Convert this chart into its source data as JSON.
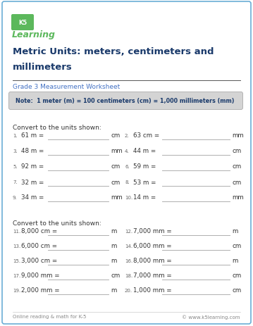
{
  "title_line1": "Metric Units: meters, centimeters and",
  "title_line2": "millimeters",
  "subtitle": "Grade 3 Measurement Worksheet",
  "note": "Note:  1 meter (m) = 100 centimeters (cm) = 1,000 millimeters (mm)",
  "section1_header": "Convert to the units shown:",
  "section2_header": "Convert to the units shown:",
  "problems_section1": [
    {
      "num": "1.",
      "left": "61 m =",
      "unit_left": "cm",
      "right_num": "2.",
      "right": "63 cm =",
      "unit_right": "mm"
    },
    {
      "num": "3.",
      "left": "48 m =",
      "unit_left": "mm",
      "right_num": "4.",
      "right": "44 m =",
      "unit_right": "cm"
    },
    {
      "num": "5.",
      "left": "92 m =",
      "unit_left": "cm",
      "right_num": "6.",
      "right": "59 m =",
      "unit_right": "cm"
    },
    {
      "num": "7.",
      "left": "32 m =",
      "unit_left": "cm",
      "right_num": "8.",
      "right": "53 m =",
      "unit_right": "cm"
    },
    {
      "num": "9.",
      "left": "34 m =",
      "unit_left": "mm",
      "right_num": "10.",
      "right": "14 m =",
      "unit_right": "mm"
    }
  ],
  "problems_section2": [
    {
      "num": "11.",
      "left": "8,000 cm =",
      "unit_left": "m",
      "right_num": "12.",
      "right": "7,000 mm =",
      "unit_right": "m"
    },
    {
      "num": "13.",
      "left": "6,000 cm =",
      "unit_left": "m",
      "right_num": "14.",
      "right": "6,000 mm =",
      "unit_right": "cm"
    },
    {
      "num": "15.",
      "left": "3,000 cm =",
      "unit_left": "m",
      "right_num": "16.",
      "right": "8,000 mm =",
      "unit_right": "m"
    },
    {
      "num": "17.",
      "left": "9,000 mm =",
      "unit_left": "cm",
      "right_num": "18.",
      "right": "7,000 mm =",
      "unit_right": "cm"
    },
    {
      "num": "19.",
      "left": "2,000 mm =",
      "unit_left": "m",
      "right_num": "20.",
      "right": "1,000 mm =",
      "unit_right": "cm"
    }
  ],
  "footer_left": "Online reading & math for K-5",
  "footer_right": "© www.k5learning.com",
  "bg_color": "#ffffff",
  "border_color": "#6baed6",
  "title_color": "#1a3a6b",
  "subtitle_color": "#4472c4",
  "note_bg": "#d4d4d4",
  "note_border": "#aaaaaa",
  "note_text_color": "#1a3a6b",
  "body_text_color": "#333333",
  "line_color": "#aaaaaa",
  "footer_color": "#888888",
  "num_color": "#666666",
  "logo_green": "#5cb85c",
  "logo_blue": "#4472c4"
}
